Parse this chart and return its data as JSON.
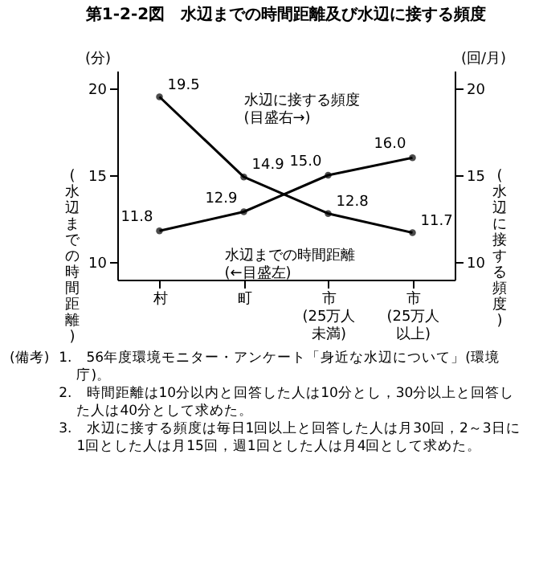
{
  "chart_data": {
    "type": "line",
    "title": "第1-2-2図　水辺までの時間距離及び水辺に接する頻度",
    "ylabel": "(水辺までの時間距離)",
    "y2label": "(水辺に接する頻度)",
    "categories": [
      "村",
      "町",
      "市(25万人未満)",
      "市(25万人以上)"
    ],
    "series": [
      {
        "name": "水辺までの時間距離(←目盛左)",
        "color": "#000000",
        "values": [
          11.8,
          12.9,
          15.0,
          16.0
        ],
        "value_labels": [
          "11.8",
          "12.9",
          "15.0",
          "16.0"
        ]
      },
      {
        "name": "水辺に接する頻度(目盛右→)",
        "color": "#000000",
        "values": [
          19.5,
          14.9,
          12.8,
          11.7
        ],
        "value_labels": [
          "19.5",
          "14.9",
          "12.8",
          "11.7"
        ],
        "axis": "y2"
      }
    ],
    "ylim": [
      9,
      21
    ],
    "yticks": [
      10,
      15,
      20
    ],
    "y2lim": [
      9,
      21
    ],
    "y2ticks": [
      10,
      15,
      20
    ],
    "marker": "circle",
    "annotations": [
      "(分)",
      "(回/月)",
      "(備考)",
      "1.　56年度環境モニター・アンケート「身近な水辺について」(環境庁)。",
      "2.　時間距離は10分以内と回答した人は10分とし，30分以上と回答した人は40分として求めた。",
      "3.　水辺に接する頻度は毎日1回以上と回答した人は月30回，2～3日に1回とした人は月15回，週1回とした人は月4回として求めた。"
    ]
  }
}
